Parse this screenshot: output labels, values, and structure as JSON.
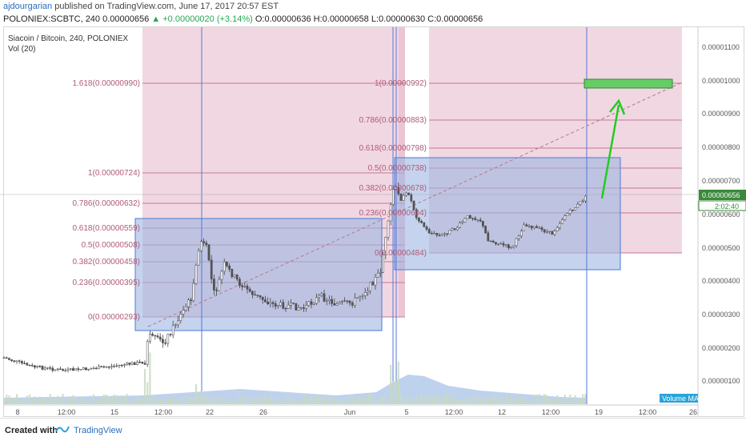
{
  "header": {
    "author": "ajdourgarian",
    "published": "published on TradingView.com, June 17, 2017 20:57 EST",
    "symbol": "POLONIEX:SCBTC, 240",
    "last": "0.00000656",
    "change_arrow": "▲",
    "change": "+0.00000020 (+3.14%)",
    "ohlc": "O:0.00000636 H:0.00000658 L:0.00000630 C:0.00000656"
  },
  "legend": {
    "title": "Siacoin / Bitcoin, 240, POLONIEX",
    "volume": "Vol (20)"
  },
  "price_axis": {
    "ticks": [
      "0.00001100",
      "0.00001000",
      "0.00000900",
      "0.00000800",
      "0.00000700",
      "0.00000600",
      "0.00000500",
      "0.00000400",
      "0.00000300",
      "0.00000200",
      "0.00000100"
    ],
    "current_price": "0.00000656",
    "countdown": "2:02:40"
  },
  "time_axis": {
    "ticks": [
      "8",
      "12:00",
      "15",
      "12:00",
      "22",
      "26",
      "Jun",
      "5",
      "12:00",
      "12",
      "12:00",
      "19",
      "12:00",
      "26"
    ]
  },
  "fib_left": {
    "levels": [
      "1.618(0.00000990)",
      "1(0.00000724)",
      "0.786(0.00000632)",
      "0.618(0.00000559)",
      "0.5(0.00000508)",
      "0.382(0.00000458)",
      "0.236(0.00000395)",
      "0(0.00000293)"
    ]
  },
  "fib_right": {
    "levels": [
      "1(0.00000992)",
      "0.786(0.00000883)",
      "0.618(0.00000798)",
      "0.5(0.00000738)",
      "0.382(0.00000678)",
      "0.236(0.00000604)",
      "0(0.00000484)"
    ]
  },
  "volume_ma_label": "Volume MA",
  "footer": {
    "created": "Created with",
    "brand": "TradingView"
  },
  "colors": {
    "fib_zone": "#e6b7c8",
    "fib_line": "#c47a95",
    "box_fill": "#9fb6e3",
    "box_stroke": "#4a7ad8",
    "candle_up": "#4e4e4e",
    "candle_down": "#4e4e4e",
    "volume": "#aec7e8",
    "arrow": "#22cc22",
    "target": "#66cc66",
    "label_bg": "#2aa3d8"
  }
}
